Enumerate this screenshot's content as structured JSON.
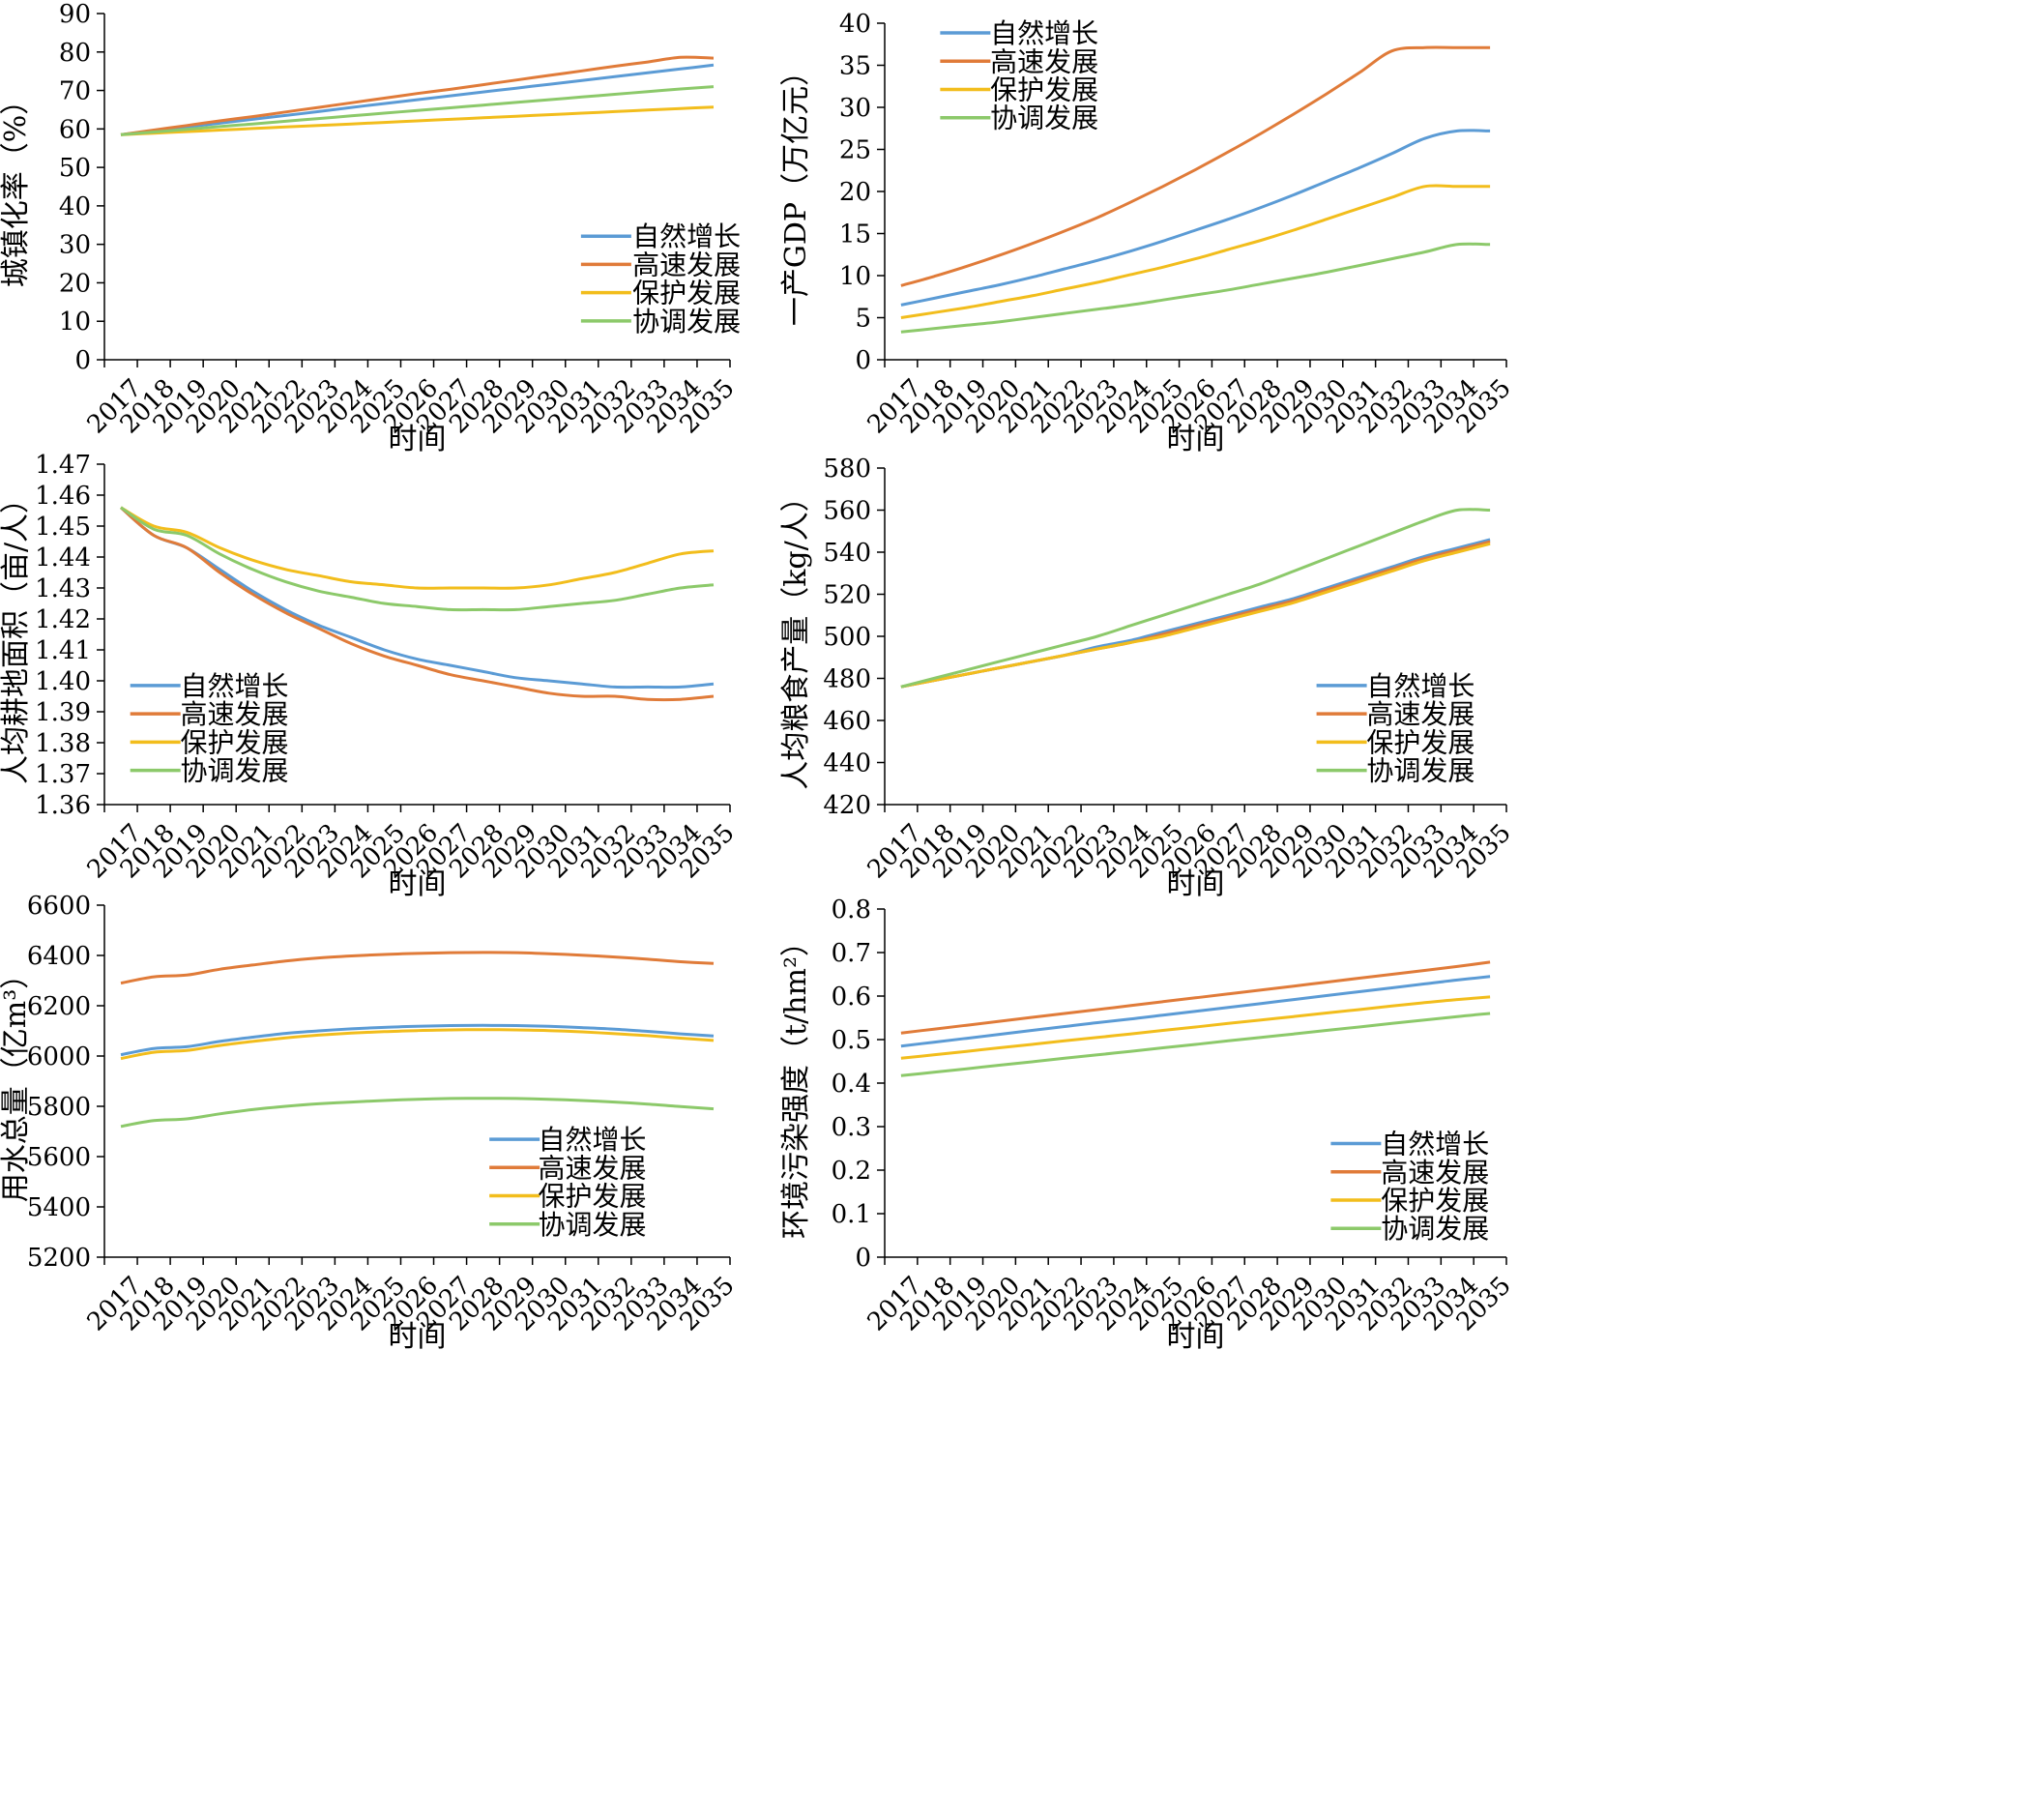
{
  "colors": {
    "自然增长": "#5B9BD5",
    "高速发展": "#E07B39",
    "保护发展": "#F2BD1C",
    "协调发展": "#8CC96A",
    "axis": "#000000"
  },
  "years": [
    "2017",
    "2018",
    "2019",
    "2020",
    "2021",
    "2022",
    "2023",
    "2024",
    "2025",
    "2026",
    "2027",
    "2028",
    "2029",
    "2030",
    "2031",
    "2032",
    "2033",
    "2034",
    "2035"
  ],
  "chart_data": [
    {
      "id": "urbanization",
      "type": "line",
      "ylabel": "城镇化率（%）",
      "xlabel": "时间",
      "yticks": [
        "0",
        "10",
        "20",
        "30",
        "40",
        "50",
        "60",
        "70",
        "80",
        "90"
      ],
      "ylim": [
        0,
        90
      ],
      "legend_position": "bottom-right",
      "grid": false,
      "series": [
        {
          "name": "自然增长",
          "values": [
            58.5,
            59.5,
            60.5,
            61.5,
            62.5,
            63.5,
            64.5,
            65.6,
            66.6,
            67.6,
            68.6,
            69.6,
            70.6,
            71.6,
            72.6,
            73.6,
            74.6,
            75.6,
            76.6
          ]
        },
        {
          "name": "高速发展",
          "values": [
            58.5,
            59.7,
            60.9,
            62.1,
            63.2,
            64.4,
            65.6,
            66.8,
            68.0,
            69.2,
            70.3,
            71.5,
            72.7,
            73.9,
            75.1,
            76.3,
            77.4,
            78.6,
            78.4
          ]
        },
        {
          "name": "保护发展",
          "values": [
            58.5,
            58.9,
            59.3,
            59.7,
            60.1,
            60.5,
            60.9,
            61.3,
            61.7,
            62.1,
            62.5,
            62.9,
            63.3,
            63.7,
            64.1,
            64.5,
            64.9,
            65.3,
            65.7
          ]
        },
        {
          "name": "协调发展",
          "values": [
            58.5,
            59.2,
            59.9,
            60.6,
            61.3,
            62.0,
            62.7,
            63.4,
            64.1,
            64.8,
            65.5,
            66.2,
            66.9,
            67.6,
            68.3,
            69.0,
            69.7,
            70.4,
            71.0
          ]
        }
      ]
    },
    {
      "id": "primary_gdp",
      "type": "line",
      "ylabel": "一产GDP（万亿元）",
      "xlabel": "时间",
      "yticks": [
        "0",
        "5",
        "10",
        "15",
        "20",
        "25",
        "30",
        "35",
        "40"
      ],
      "ylim": [
        0,
        40
      ],
      "legend_position": "top-left",
      "grid": false,
      "series": [
        {
          "name": "自然增长",
          "values": [
            6.5,
            7.3,
            8.1,
            8.9,
            9.8,
            10.8,
            11.8,
            12.9,
            14.1,
            15.4,
            16.7,
            18.1,
            19.6,
            21.2,
            22.8,
            24.5,
            26.3,
            27.2,
            27.2
          ]
        },
        {
          "name": "高速发展",
          "values": [
            8.8,
            9.9,
            11.1,
            12.4,
            13.8,
            15.3,
            16.9,
            18.7,
            20.6,
            22.6,
            24.7,
            26.9,
            29.2,
            31.6,
            34.1,
            36.7,
            37.1,
            37.1,
            37.1
          ]
        },
        {
          "name": "保护发展",
          "values": [
            5.0,
            5.6,
            6.2,
            6.9,
            7.6,
            8.4,
            9.2,
            10.1,
            11.0,
            12.0,
            13.1,
            14.2,
            15.4,
            16.7,
            18.0,
            19.3,
            20.6,
            20.6,
            20.6
          ]
        },
        {
          "name": "协调发展",
          "values": [
            3.3,
            3.7,
            4.1,
            4.5,
            5.0,
            5.5,
            6.0,
            6.5,
            7.1,
            7.7,
            8.3,
            9.0,
            9.7,
            10.4,
            11.2,
            12.0,
            12.8,
            13.7,
            13.7
          ]
        }
      ]
    },
    {
      "id": "arable_per_capita",
      "type": "line",
      "ylabel": "人均耕地面积（亩/人）",
      "xlabel": "时间",
      "yticks": [
        "1.36",
        "1.37",
        "1.38",
        "1.39",
        "1.40",
        "1.41",
        "1.42",
        "1.43",
        "1.44",
        "1.45",
        "1.46",
        "1.47"
      ],
      "ylim": [
        1.36,
        1.47
      ],
      "legend_position": "bottom-left",
      "grid": false,
      "series": [
        {
          "name": "自然增长",
          "values": [
            1.456,
            1.447,
            1.443,
            1.436,
            1.429,
            1.423,
            1.418,
            1.414,
            1.41,
            1.407,
            1.405,
            1.403,
            1.401,
            1.4,
            1.399,
            1.398,
            1.398,
            1.398,
            1.399
          ]
        },
        {
          "name": "高速发展",
          "values": [
            1.456,
            1.447,
            1.443,
            1.435,
            1.428,
            1.422,
            1.417,
            1.412,
            1.408,
            1.405,
            1.402,
            1.4,
            1.398,
            1.396,
            1.395,
            1.395,
            1.394,
            1.394,
            1.395
          ]
        },
        {
          "name": "保护发展",
          "values": [
            1.456,
            1.45,
            1.448,
            1.443,
            1.439,
            1.436,
            1.434,
            1.432,
            1.431,
            1.43,
            1.43,
            1.43,
            1.43,
            1.431,
            1.433,
            1.435,
            1.438,
            1.441,
            1.442
          ]
        },
        {
          "name": "协调发展",
          "values": [
            1.456,
            1.449,
            1.447,
            1.441,
            1.436,
            1.432,
            1.429,
            1.427,
            1.425,
            1.424,
            1.423,
            1.423,
            1.423,
            1.424,
            1.425,
            1.426,
            1.428,
            1.43,
            1.431
          ]
        }
      ]
    },
    {
      "id": "grain_per_capita",
      "type": "line",
      "ylabel": "人均粮食产量（kg/人）",
      "xlabel": "时间",
      "yticks": [
        "420",
        "440",
        "460",
        "480",
        "500",
        "520",
        "540",
        "560",
        "580"
      ],
      "ylim": [
        420,
        580
      ],
      "legend_position": "bottom-right",
      "grid": false,
      "series": [
        {
          "name": "自然增长",
          "values": [
            476,
            479,
            482,
            485,
            488,
            491,
            495,
            498,
            502,
            506,
            510,
            514,
            518,
            523,
            528,
            533,
            538,
            542,
            546
          ]
        },
        {
          "name": "高速发展",
          "values": [
            476,
            479,
            482,
            485,
            488,
            491,
            494,
            497,
            501,
            505,
            509,
            513,
            517,
            522,
            527,
            532,
            537,
            541,
            545
          ]
        },
        {
          "name": "保护发展",
          "values": [
            476,
            479,
            482,
            485,
            488,
            491,
            494,
            497,
            500,
            504,
            508,
            512,
            516,
            521,
            526,
            531,
            536,
            540,
            544
          ]
        },
        {
          "name": "协调发展",
          "values": [
            476,
            480,
            484,
            488,
            492,
            496,
            500,
            505,
            510,
            515,
            520,
            525,
            531,
            537,
            543,
            549,
            555,
            560,
            560
          ]
        }
      ]
    },
    {
      "id": "water_use",
      "type": "line",
      "ylabel": "用水总量（亿m³）",
      "xlabel": "时间",
      "yticks": [
        "5200",
        "5400",
        "5600",
        "5800",
        "6000",
        "6200",
        "6400",
        "6600"
      ],
      "ylim": [
        5200,
        6600
      ],
      "legend_position": "bottom-right",
      "grid": false,
      "series": [
        {
          "name": "自然增长",
          "values": [
            6005,
            6030,
            6037,
            6058,
            6075,
            6090,
            6100,
            6108,
            6114,
            6118,
            6121,
            6122,
            6121,
            6118,
            6113,
            6107,
            6098,
            6088,
            6080
          ]
        },
        {
          "name": "高速发展",
          "values": [
            6290,
            6315,
            6322,
            6345,
            6362,
            6378,
            6390,
            6398,
            6404,
            6408,
            6411,
            6412,
            6411,
            6407,
            6401,
            6394,
            6385,
            6375,
            6368
          ]
        },
        {
          "name": "保护发展",
          "values": [
            5990,
            6015,
            6022,
            6042,
            6058,
            6072,
            6083,
            6091,
            6097,
            6101,
            6104,
            6105,
            6104,
            6101,
            6096,
            6089,
            6081,
            6071,
            6062
          ]
        },
        {
          "name": "协调发展",
          "values": [
            5720,
            5743,
            5750,
            5770,
            5787,
            5800,
            5810,
            5817,
            5823,
            5828,
            5831,
            5832,
            5831,
            5828,
            5823,
            5817,
            5809,
            5799,
            5790
          ]
        }
      ]
    },
    {
      "id": "pollution_intensity",
      "type": "line",
      "ylabel": "环境污染强度（t/hm²）",
      "xlabel": "时间",
      "yticks": [
        "0",
        "0.1",
        "0.2",
        "0.3",
        "0.4",
        "0.5",
        "0.6",
        "0.7",
        "0.8"
      ],
      "ylim": [
        0,
        0.8
      ],
      "legend_position": "bottom-right",
      "grid": false,
      "series": [
        {
          "name": "自然增长",
          "values": [
            0.485,
            0.494,
            0.503,
            0.512,
            0.521,
            0.53,
            0.539,
            0.547,
            0.556,
            0.565,
            0.574,
            0.583,
            0.592,
            0.601,
            0.61,
            0.619,
            0.628,
            0.637,
            0.645
          ]
        },
        {
          "name": "高速发展",
          "values": [
            0.515,
            0.524,
            0.533,
            0.542,
            0.551,
            0.56,
            0.569,
            0.578,
            0.587,
            0.596,
            0.605,
            0.614,
            0.623,
            0.632,
            0.641,
            0.65,
            0.659,
            0.668,
            0.678
          ]
        },
        {
          "name": "保护发展",
          "values": [
            0.457,
            0.465,
            0.473,
            0.481,
            0.489,
            0.497,
            0.505,
            0.513,
            0.521,
            0.529,
            0.537,
            0.545,
            0.553,
            0.561,
            0.569,
            0.577,
            0.585,
            0.592,
            0.598
          ]
        },
        {
          "name": "协调发展",
          "values": [
            0.417,
            0.425,
            0.433,
            0.441,
            0.449,
            0.457,
            0.465,
            0.473,
            0.481,
            0.489,
            0.497,
            0.505,
            0.513,
            0.521,
            0.529,
            0.537,
            0.545,
            0.553,
            0.56
          ]
        }
      ]
    }
  ]
}
